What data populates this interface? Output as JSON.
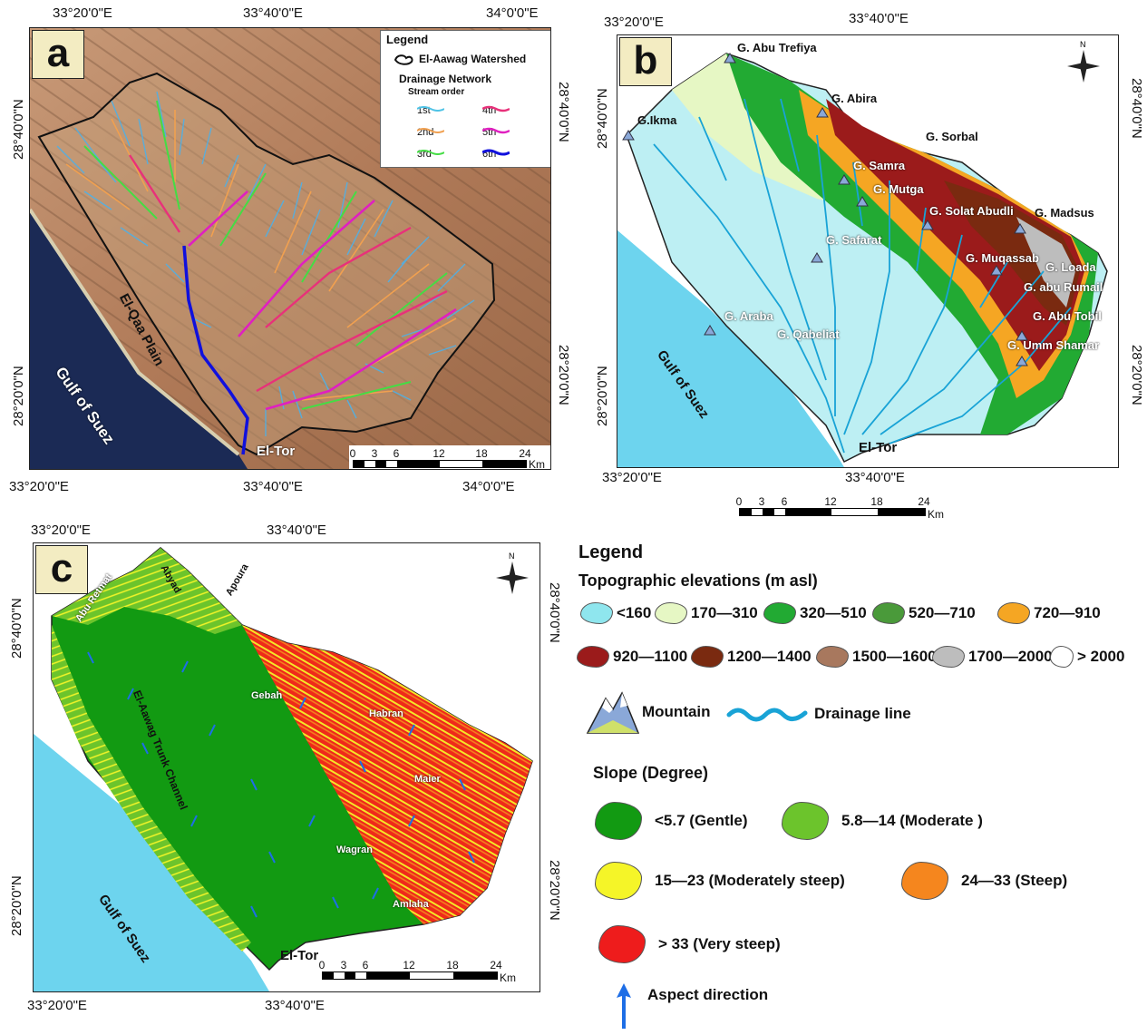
{
  "panel_a": {
    "label": "a",
    "coords_top": [
      "33°20'0\"E",
      "33°40'0\"E",
      "34°0'0\"E"
    ],
    "coords_bottom": [
      "33°20'0\"E",
      "33°40'0\"E",
      "34°0'0\"E"
    ],
    "coords_left": [
      "28°40'0\"N",
      "28°20'0\"N"
    ],
    "coords_right": [
      "28°40'0\"N",
      "28°20'0\"N"
    ],
    "places": {
      "plain": "El-Qaa Plain",
      "gulf": "Gulf of Suez",
      "town": "El-Tor"
    },
    "legend": {
      "title": "Legend",
      "watershed": "El-Aawag Watershed",
      "network": "Drainage Network",
      "stream_order": "Stream order",
      "orders": [
        {
          "label": "1st",
          "color": "#4fc3e6"
        },
        {
          "label": "2nd",
          "color": "#f0a050"
        },
        {
          "label": "3rd",
          "color": "#44dd44"
        },
        {
          "label": "4th",
          "color": "#e8317a"
        },
        {
          "label": "5th",
          "color": "#e020c0"
        },
        {
          "label": "6th",
          "color": "#1010dd"
        }
      ]
    },
    "scale": {
      "ticks": [
        "0",
        "3",
        "6",
        "12",
        "18",
        "24"
      ],
      "unit": "Km"
    }
  },
  "panel_b": {
    "label": "b",
    "coords_top": [
      "33°20'0\"E",
      "33°40'0\"E"
    ],
    "coords_bottom": [
      "33°20'0\"E",
      "33°40'0\"E"
    ],
    "coords_left": [
      "28°40'0\"N",
      "28°20'0\"N"
    ],
    "coords_right": [
      "28°40'0\"N",
      "28°20'0\"N"
    ],
    "mountains": [
      "G. Abu Trefiya",
      "G. Abira",
      "G.Ikma",
      "G. Sorbal",
      "G. Samra",
      "G. Mutga",
      "G. Solat Abudli",
      "G. Madsus",
      "G. Safarat",
      "G. Muqassab",
      "G. Loada",
      "G. abu Rumail",
      "G. Araba",
      "G. Abu Tobil",
      "G. Qabeliat",
      "G. Umm Shamar"
    ],
    "places": {
      "gulf": "Gulf of Suez",
      "town": "El-Tor"
    },
    "north": "N",
    "scale": {
      "ticks": [
        "0",
        "3",
        "6",
        "12",
        "18",
        "24"
      ],
      "unit": "Km"
    }
  },
  "panel_c": {
    "label": "c",
    "coords_top": [
      "33°20'0\"E",
      "33°40'0\"E"
    ],
    "coords_bottom": [
      "33°20'0\"E",
      "33°40'0\"E"
    ],
    "coords_left": [
      "28°40'0\"N",
      "28°20'0\"N"
    ],
    "coords_right": [
      "28°40'0\"N",
      "28°20'0\"N"
    ],
    "wadis": [
      "Abyad",
      "Abu Retmat",
      "Apoura",
      "Gebah",
      "Habran",
      "Maier",
      "Wagran",
      "Amlaha"
    ],
    "trunk": "El-Aawag Trunk Channel",
    "places": {
      "gulf": "Gulf of Suez",
      "town": "El-Tor"
    },
    "north": "N",
    "scale": {
      "ticks": [
        "0",
        "3",
        "6",
        "12",
        "18",
        "24"
      ],
      "unit": "Km"
    }
  },
  "legend": {
    "title": "Legend",
    "elev_title": "Topographic elevations (m asl)",
    "elevations": [
      {
        "label": "<160",
        "color": "#8fe6ee"
      },
      {
        "label": "170—310",
        "color": "#e6f7c4"
      },
      {
        "label": "320—510",
        "color": "#22aa33"
      },
      {
        "label": "520—710",
        "color": "#4a9a3a"
      },
      {
        "label": "720—910",
        "color": "#f5a623"
      },
      {
        "label": "920—1100",
        "color": "#9b1b1b"
      },
      {
        "label": "1200—1400",
        "color": "#7a2a10"
      },
      {
        "label": "1500—1600",
        "color": "#a8785e"
      },
      {
        "label": "1700—2000",
        "color": "#bdbdbd"
      },
      {
        "label": "> 2000",
        "color": "#ffffff"
      }
    ],
    "mountain": "Mountain",
    "drainage": "Drainage line",
    "slope_title": "Slope (Degree)",
    "slopes": [
      {
        "label": "<5.7 (Gentle)",
        "color": "#129a12"
      },
      {
        "label": "5.8—14 (Moderate )",
        "color": "#6cc42c"
      },
      {
        "label": "15—23 (Moderately steep)",
        "color": "#f5f528"
      },
      {
        "label": "24—33 (Steep)",
        "color": "#f5861e"
      },
      {
        "label": "> 33 (Very steep)",
        "color": "#ee1c1c"
      }
    ],
    "aspect": "Aspect direction"
  }
}
